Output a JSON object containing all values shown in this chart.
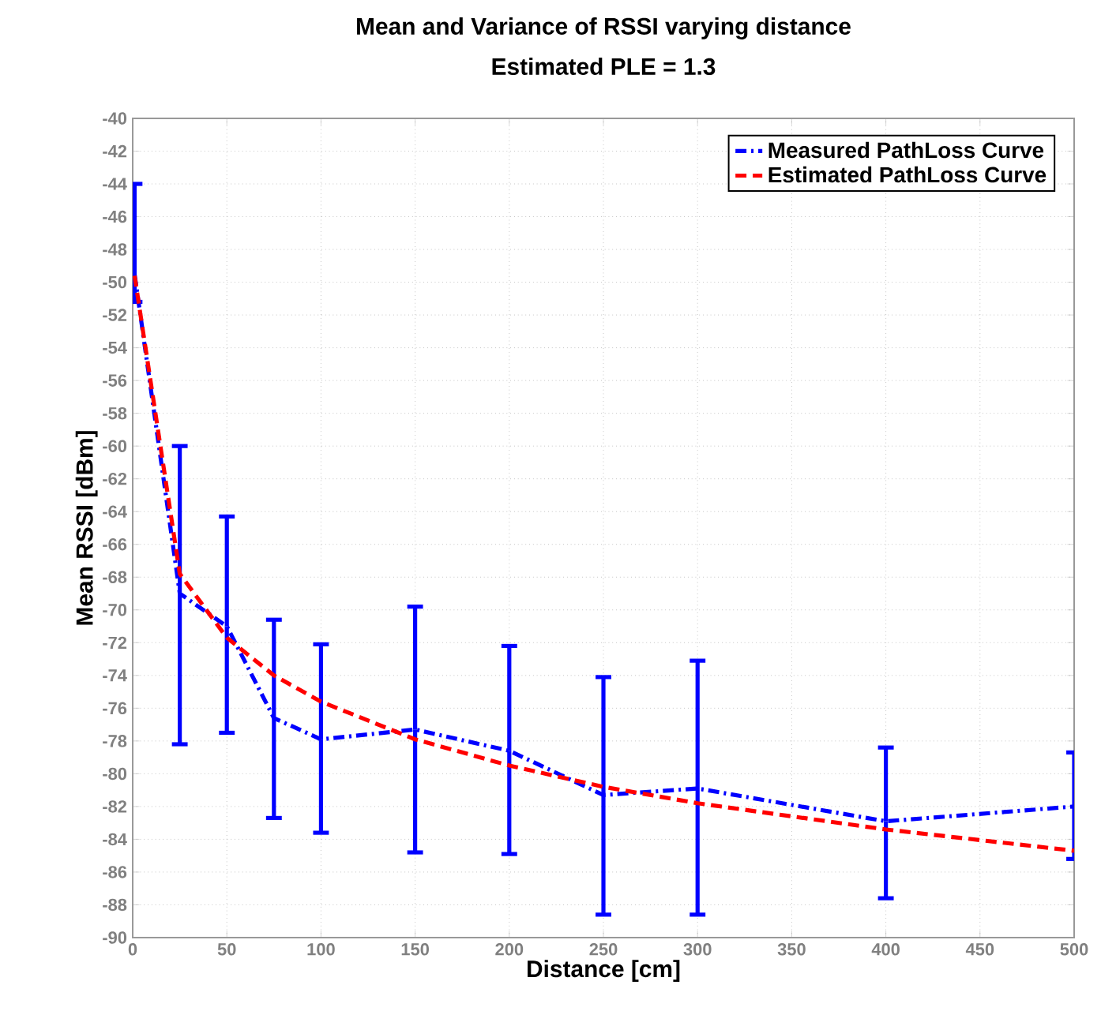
{
  "chart_data": {
    "type": "line",
    "title": "Mean and Variance of RSSI varying distance",
    "subtitle": "Estimated PLE = 1.3",
    "xlabel": "Distance [cm]",
    "ylabel": "Mean RSSI [dBm]",
    "xlim": [
      0,
      500
    ],
    "ylim": [
      -90,
      -40
    ],
    "xticks": [
      0,
      50,
      100,
      150,
      200,
      250,
      300,
      350,
      400,
      450,
      500
    ],
    "yticks": [
      -90,
      -88,
      -86,
      -84,
      -82,
      -80,
      -78,
      -76,
      -74,
      -72,
      -70,
      -68,
      -66,
      -64,
      -62,
      -60,
      -58,
      -56,
      -54,
      -52,
      -50,
      -48,
      -46,
      -44,
      -42,
      -40
    ],
    "grid": true,
    "legend": "top right",
    "series": [
      {
        "name": "Measured PathLoss Curve",
        "color": "#0000ff",
        "line_style": "dashdot",
        "x": [
          1,
          25,
          50,
          75,
          100,
          150,
          200,
          250,
          300,
          400,
          500
        ],
        "values": [
          -49.5,
          -69,
          -71,
          -76.6,
          -77.9,
          -77.3,
          -78.6,
          -81.3,
          -80.9,
          -82.9,
          -82
        ],
        "errors": [
          [
            -51.2,
            -44
          ],
          [
            -78.2,
            -60
          ],
          [
            -77.5,
            -64.3
          ],
          [
            -82.7,
            -70.6
          ],
          [
            -83.6,
            -72.1
          ],
          [
            -84.8,
            -69.8
          ],
          [
            -84.9,
            -72.2
          ],
          [
            -88.6,
            -74.1
          ],
          [
            -88.6,
            -73.1
          ],
          [
            -87.6,
            -78.4
          ],
          [
            -85.2,
            -78.7
          ]
        ]
      },
      {
        "name": "Estimated PathLoss Curve",
        "color": "#ff0000",
        "line_style": "dashed",
        "x": [
          1,
          25,
          50,
          75,
          100,
          150,
          200,
          250,
          300,
          400,
          500
        ],
        "values": [
          -49.6,
          -67.8,
          -71.7,
          -74.0,
          -75.6,
          -77.9,
          -79.5,
          -80.8,
          -81.8,
          -83.4,
          -84.7
        ]
      }
    ]
  }
}
